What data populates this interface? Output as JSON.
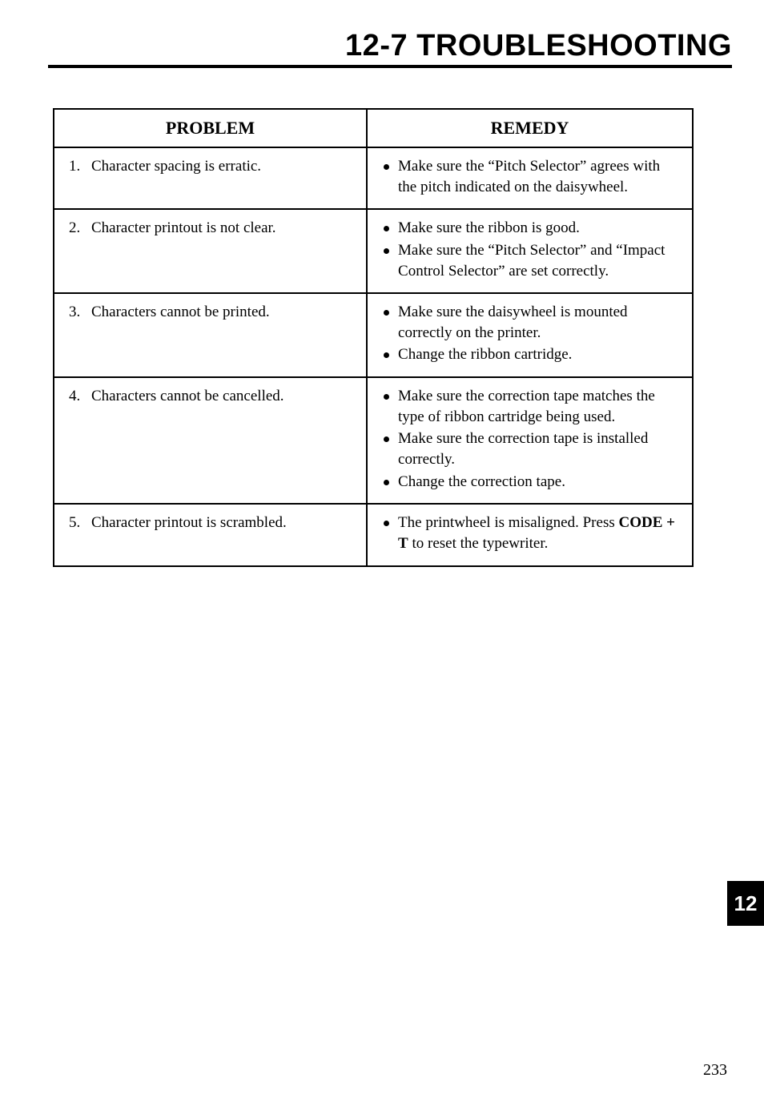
{
  "title": "12-7  TROUBLESHOOTING",
  "chapter_tab": "12",
  "page_number": "233",
  "table": {
    "headers": {
      "problem": "PROBLEM",
      "remedy": "REMEDY"
    },
    "rows": [
      {
        "num": "1.",
        "problem": "Character spacing is erratic.",
        "remedies": [
          {
            "segments": [
              {
                "text": "Make sure the “Pitch Selector” agrees with the pitch indicated on the daisywheel."
              }
            ]
          }
        ]
      },
      {
        "num": "2.",
        "problem": "Character printout is not clear.",
        "remedies": [
          {
            "segments": [
              {
                "text": "Make sure the ribbon is good."
              }
            ]
          },
          {
            "segments": [
              {
                "text": "Make sure the “Pitch Selector” and “Impact Control Selector” are set correctly."
              }
            ]
          }
        ]
      },
      {
        "num": "3.",
        "problem": "Characters cannot be printed.",
        "remedies": [
          {
            "segments": [
              {
                "text": "Make sure the daisywheel is mounted correctly on the printer."
              }
            ]
          },
          {
            "segments": [
              {
                "text": "Change the ribbon cartridge."
              }
            ]
          }
        ]
      },
      {
        "num": "4.",
        "problem": "Characters cannot be cancelled.",
        "remedies": [
          {
            "segments": [
              {
                "text": "Make sure the correction tape matches the type of ribbon cartridge being used."
              }
            ]
          },
          {
            "segments": [
              {
                "text": "Make sure the correction tape is installed correctly."
              }
            ]
          },
          {
            "segments": [
              {
                "text": "Change the correction tape."
              }
            ]
          }
        ]
      },
      {
        "num": "5.",
        "problem": "Character printout is scrambled.",
        "remedies": [
          {
            "segments": [
              {
                "text": "The printwheel is misaligned. Press "
              },
              {
                "text": "CODE + T",
                "bold": true
              },
              {
                "text": " to reset the typewriter."
              }
            ]
          }
        ]
      }
    ]
  }
}
